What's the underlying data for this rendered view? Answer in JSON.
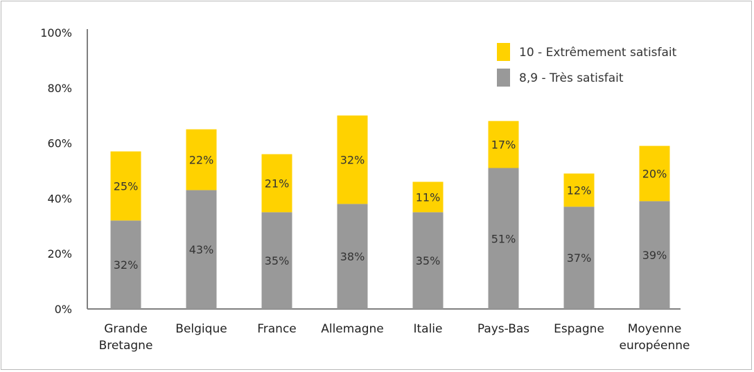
{
  "chart_data": {
    "type": "bar",
    "stacked": true,
    "categories": [
      [
        "Grande",
        "Bretagne"
      ],
      [
        "Belgique"
      ],
      [
        "France"
      ],
      [
        "Allemagne"
      ],
      [
        "Italie"
      ],
      [
        "Pays-Bas"
      ],
      [
        "Espagne"
      ],
      [
        "Moyenne",
        "européenne"
      ]
    ],
    "series": [
      {
        "name": "8,9 - Très satisfait",
        "color": "#999999",
        "values": [
          32,
          43,
          35,
          38,
          35,
          51,
          37,
          39
        ],
        "labels": [
          "32%",
          "43%",
          "35%",
          "38%",
          "35%",
          "51%",
          "37%",
          "39%"
        ]
      },
      {
        "name": "10 - Extrêmement satisfait",
        "color": "#FFD200",
        "values": [
          25,
          22,
          21,
          32,
          11,
          17,
          12,
          20
        ],
        "labels": [
          "25%",
          "22%",
          "21%",
          "32%",
          "11%",
          "17%",
          "12%",
          "20%"
        ]
      }
    ],
    "y_ticks": [
      "0%",
      "20%",
      "40%",
      "60%",
      "80%",
      "100%"
    ],
    "ylim": [
      0,
      100
    ],
    "grid": false,
    "legend_position": "top-right",
    "legend_order": [
      1,
      0
    ]
  }
}
